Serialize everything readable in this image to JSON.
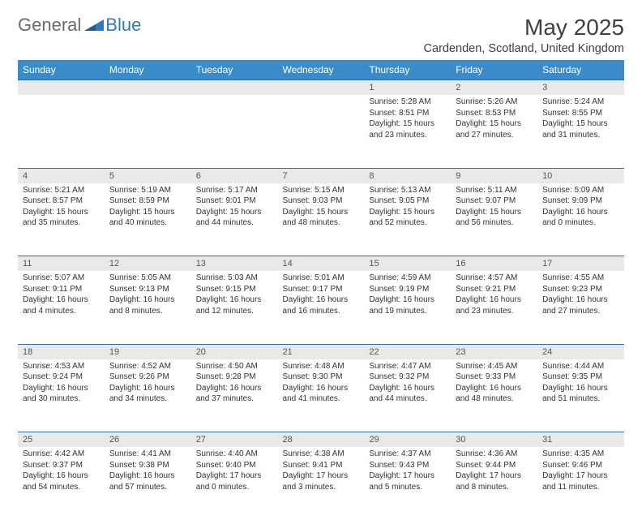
{
  "logo": {
    "general": "General",
    "blue": "Blue"
  },
  "title": "May 2025",
  "location": "Cardenden, Scotland, United Kingdom",
  "colors": {
    "header_bg": "#3b8bc9",
    "header_text": "#ffffff",
    "daynum_bg": "#e9e9e9",
    "border": "#2f6fa5",
    "text": "#333333"
  },
  "day_names": [
    "Sunday",
    "Monday",
    "Tuesday",
    "Wednesday",
    "Thursday",
    "Friday",
    "Saturday"
  ],
  "weeks": [
    {
      "nums": [
        "",
        "",
        "",
        "",
        "1",
        "2",
        "3"
      ],
      "cells": [
        {},
        {},
        {},
        {},
        {
          "sunrise": "Sunrise: 5:28 AM",
          "sunset": "Sunset: 8:51 PM",
          "daylight": "Daylight: 15 hours and 23 minutes."
        },
        {
          "sunrise": "Sunrise: 5:26 AM",
          "sunset": "Sunset: 8:53 PM",
          "daylight": "Daylight: 15 hours and 27 minutes."
        },
        {
          "sunrise": "Sunrise: 5:24 AM",
          "sunset": "Sunset: 8:55 PM",
          "daylight": "Daylight: 15 hours and 31 minutes."
        }
      ]
    },
    {
      "nums": [
        "4",
        "5",
        "6",
        "7",
        "8",
        "9",
        "10"
      ],
      "cells": [
        {
          "sunrise": "Sunrise: 5:21 AM",
          "sunset": "Sunset: 8:57 PM",
          "daylight": "Daylight: 15 hours and 35 minutes."
        },
        {
          "sunrise": "Sunrise: 5:19 AM",
          "sunset": "Sunset: 8:59 PM",
          "daylight": "Daylight: 15 hours and 40 minutes."
        },
        {
          "sunrise": "Sunrise: 5:17 AM",
          "sunset": "Sunset: 9:01 PM",
          "daylight": "Daylight: 15 hours and 44 minutes."
        },
        {
          "sunrise": "Sunrise: 5:15 AM",
          "sunset": "Sunset: 9:03 PM",
          "daylight": "Daylight: 15 hours and 48 minutes."
        },
        {
          "sunrise": "Sunrise: 5:13 AM",
          "sunset": "Sunset: 9:05 PM",
          "daylight": "Daylight: 15 hours and 52 minutes."
        },
        {
          "sunrise": "Sunrise: 5:11 AM",
          "sunset": "Sunset: 9:07 PM",
          "daylight": "Daylight: 15 hours and 56 minutes."
        },
        {
          "sunrise": "Sunrise: 5:09 AM",
          "sunset": "Sunset: 9:09 PM",
          "daylight": "Daylight: 16 hours and 0 minutes."
        }
      ]
    },
    {
      "nums": [
        "11",
        "12",
        "13",
        "14",
        "15",
        "16",
        "17"
      ],
      "cells": [
        {
          "sunrise": "Sunrise: 5:07 AM",
          "sunset": "Sunset: 9:11 PM",
          "daylight": "Daylight: 16 hours and 4 minutes."
        },
        {
          "sunrise": "Sunrise: 5:05 AM",
          "sunset": "Sunset: 9:13 PM",
          "daylight": "Daylight: 16 hours and 8 minutes."
        },
        {
          "sunrise": "Sunrise: 5:03 AM",
          "sunset": "Sunset: 9:15 PM",
          "daylight": "Daylight: 16 hours and 12 minutes."
        },
        {
          "sunrise": "Sunrise: 5:01 AM",
          "sunset": "Sunset: 9:17 PM",
          "daylight": "Daylight: 16 hours and 16 minutes."
        },
        {
          "sunrise": "Sunrise: 4:59 AM",
          "sunset": "Sunset: 9:19 PM",
          "daylight": "Daylight: 16 hours and 19 minutes."
        },
        {
          "sunrise": "Sunrise: 4:57 AM",
          "sunset": "Sunset: 9:21 PM",
          "daylight": "Daylight: 16 hours and 23 minutes."
        },
        {
          "sunrise": "Sunrise: 4:55 AM",
          "sunset": "Sunset: 9:23 PM",
          "daylight": "Daylight: 16 hours and 27 minutes."
        }
      ]
    },
    {
      "nums": [
        "18",
        "19",
        "20",
        "21",
        "22",
        "23",
        "24"
      ],
      "cells": [
        {
          "sunrise": "Sunrise: 4:53 AM",
          "sunset": "Sunset: 9:24 PM",
          "daylight": "Daylight: 16 hours and 30 minutes."
        },
        {
          "sunrise": "Sunrise: 4:52 AM",
          "sunset": "Sunset: 9:26 PM",
          "daylight": "Daylight: 16 hours and 34 minutes."
        },
        {
          "sunrise": "Sunrise: 4:50 AM",
          "sunset": "Sunset: 9:28 PM",
          "daylight": "Daylight: 16 hours and 37 minutes."
        },
        {
          "sunrise": "Sunrise: 4:48 AM",
          "sunset": "Sunset: 9:30 PM",
          "daylight": "Daylight: 16 hours and 41 minutes."
        },
        {
          "sunrise": "Sunrise: 4:47 AM",
          "sunset": "Sunset: 9:32 PM",
          "daylight": "Daylight: 16 hours and 44 minutes."
        },
        {
          "sunrise": "Sunrise: 4:45 AM",
          "sunset": "Sunset: 9:33 PM",
          "daylight": "Daylight: 16 hours and 48 minutes."
        },
        {
          "sunrise": "Sunrise: 4:44 AM",
          "sunset": "Sunset: 9:35 PM",
          "daylight": "Daylight: 16 hours and 51 minutes."
        }
      ]
    },
    {
      "nums": [
        "25",
        "26",
        "27",
        "28",
        "29",
        "30",
        "31"
      ],
      "cells": [
        {
          "sunrise": "Sunrise: 4:42 AM",
          "sunset": "Sunset: 9:37 PM",
          "daylight": "Daylight: 16 hours and 54 minutes."
        },
        {
          "sunrise": "Sunrise: 4:41 AM",
          "sunset": "Sunset: 9:38 PM",
          "daylight": "Daylight: 16 hours and 57 minutes."
        },
        {
          "sunrise": "Sunrise: 4:40 AM",
          "sunset": "Sunset: 9:40 PM",
          "daylight": "Daylight: 17 hours and 0 minutes."
        },
        {
          "sunrise": "Sunrise: 4:38 AM",
          "sunset": "Sunset: 9:41 PM",
          "daylight": "Daylight: 17 hours and 3 minutes."
        },
        {
          "sunrise": "Sunrise: 4:37 AM",
          "sunset": "Sunset: 9:43 PM",
          "daylight": "Daylight: 17 hours and 5 minutes."
        },
        {
          "sunrise": "Sunrise: 4:36 AM",
          "sunset": "Sunset: 9:44 PM",
          "daylight": "Daylight: 17 hours and 8 minutes."
        },
        {
          "sunrise": "Sunrise: 4:35 AM",
          "sunset": "Sunset: 9:46 PM",
          "daylight": "Daylight: 17 hours and 11 minutes."
        }
      ]
    }
  ]
}
